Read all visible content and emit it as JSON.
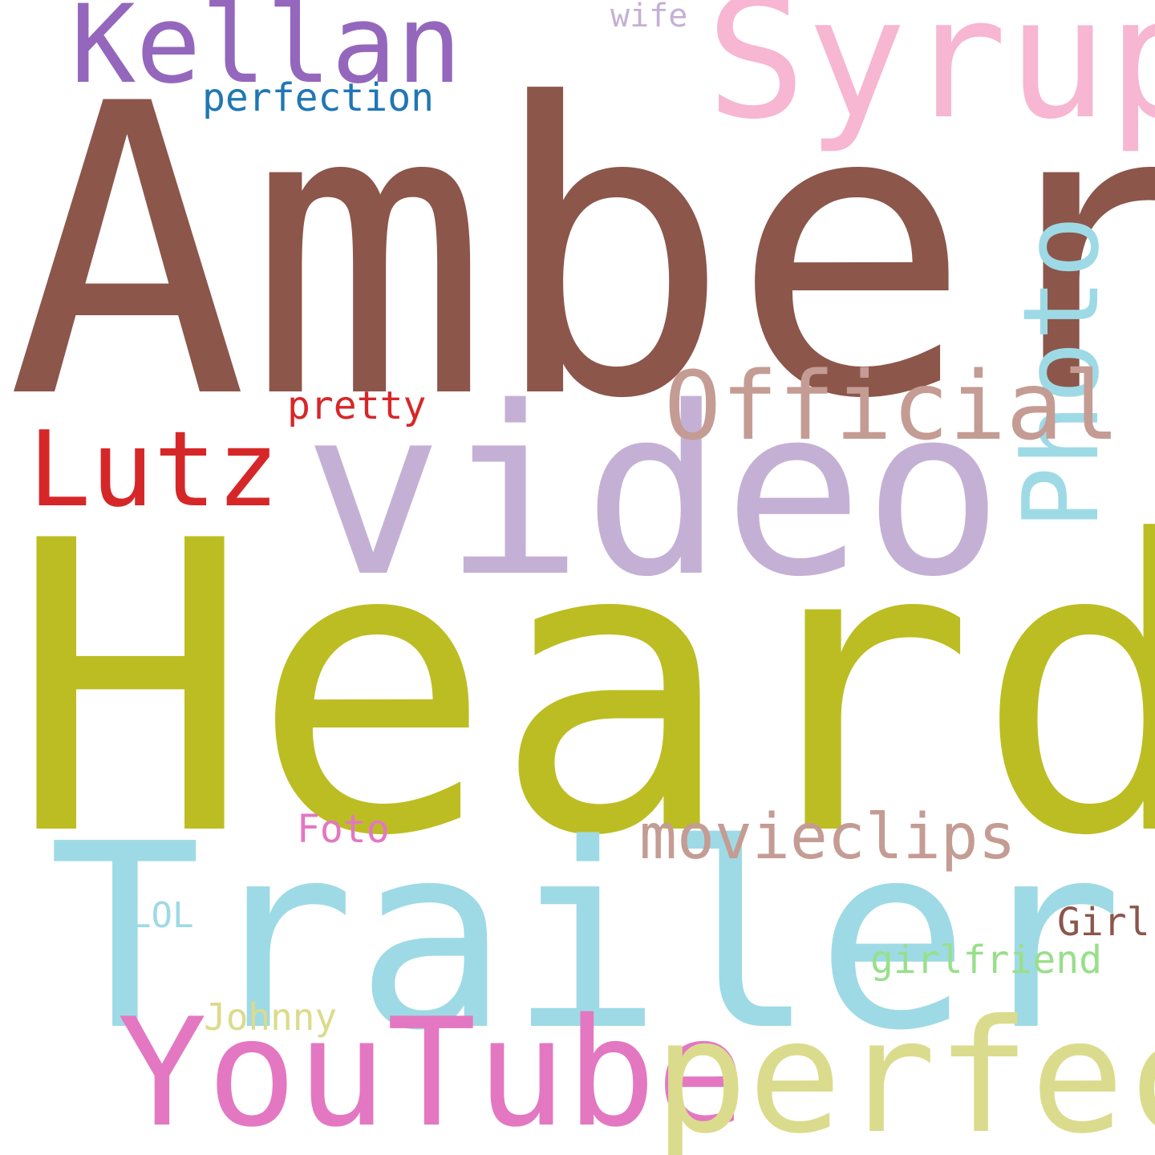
{
  "word_cloud": {
    "background": "#ffffff",
    "words": [
      {
        "id": "amber",
        "text": "Amber",
        "color": "#8c564b",
        "orientation": "horizontal"
      },
      {
        "id": "heard",
        "text": "Heard",
        "color": "#bcbd22",
        "orientation": "horizontal"
      },
      {
        "id": "video",
        "text": "video",
        "color": "#c5b0d5",
        "orientation": "horizontal"
      },
      {
        "id": "trailer",
        "text": "Trailer",
        "color": "#9edae5",
        "orientation": "horizontal"
      },
      {
        "id": "syrup",
        "text": "Syrup",
        "color": "#f7b6d2",
        "orientation": "horizontal"
      },
      {
        "id": "kellan",
        "text": "Kellan",
        "color": "#9467bd",
        "orientation": "horizontal"
      },
      {
        "id": "youtube",
        "text": "YouTube",
        "color": "#e377c2",
        "orientation": "horizontal"
      },
      {
        "id": "perfect",
        "text": "perfect",
        "color": "#dbdb8d",
        "orientation": "horizontal"
      },
      {
        "id": "photo",
        "text": "Photo",
        "color": "#9edae5",
        "orientation": "vertical"
      },
      {
        "id": "official",
        "text": "Official",
        "color": "#c49c94",
        "orientation": "horizontal"
      },
      {
        "id": "lutz",
        "text": "Lutz",
        "color": "#d62728",
        "orientation": "horizontal"
      },
      {
        "id": "movieclips",
        "text": "movieclips",
        "color": "#c49c94",
        "orientation": "horizontal"
      },
      {
        "id": "perfection",
        "text": "perfection",
        "color": "#1f77b4",
        "orientation": "horizontal"
      },
      {
        "id": "pretty",
        "text": "pretty",
        "color": "#d62728",
        "orientation": "horizontal"
      },
      {
        "id": "foto",
        "text": "Foto",
        "color": "#e377c2",
        "orientation": "horizontal"
      },
      {
        "id": "wife",
        "text": "wife",
        "color": "#c5b0d5",
        "orientation": "horizontal"
      },
      {
        "id": "lol",
        "text": "LOL",
        "color": "#9edae5",
        "orientation": "horizontal"
      },
      {
        "id": "girl",
        "text": "Girl",
        "color": "#8c564b",
        "orientation": "horizontal"
      },
      {
        "id": "girlfriend",
        "text": "girlfriend",
        "color": "#98df8a",
        "orientation": "horizontal"
      },
      {
        "id": "johnny",
        "text": "Johnny",
        "color": "#dbdb8d",
        "orientation": "horizontal"
      }
    ]
  }
}
